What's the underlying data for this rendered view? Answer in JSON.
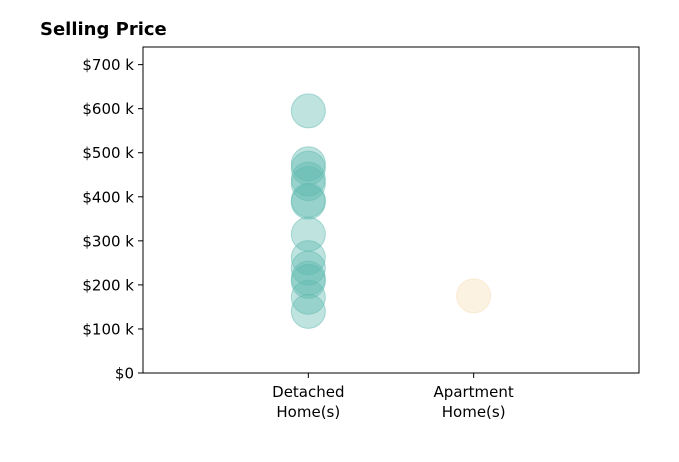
{
  "chart_data": {
    "type": "scatter",
    "title": "Selling Price",
    "xlabel": "",
    "ylabel": "",
    "categories": [
      "Detached\nHome(s)",
      "Apartment\nHome(s)"
    ],
    "ylim": [
      0,
      740
    ],
    "yticks": [
      0,
      100,
      200,
      300,
      400,
      500,
      600,
      700
    ],
    "ytick_labels": [
      "$0",
      "$100 k",
      "$200 k",
      "$300 k",
      "$400 k",
      "$500 k",
      "$600 k",
      "$700 k"
    ],
    "grid": false,
    "series": [
      {
        "category": "Detached\nHome(s)",
        "color": "#5fb9b0",
        "values": [
          595,
          475,
          465,
          440,
          430,
          392,
          388,
          315,
          262,
          238,
          215,
          208,
          172,
          140
        ]
      },
      {
        "category": "Apartment\nHome(s)",
        "color": "#f5deb3",
        "values": [
          175
        ]
      }
    ]
  }
}
